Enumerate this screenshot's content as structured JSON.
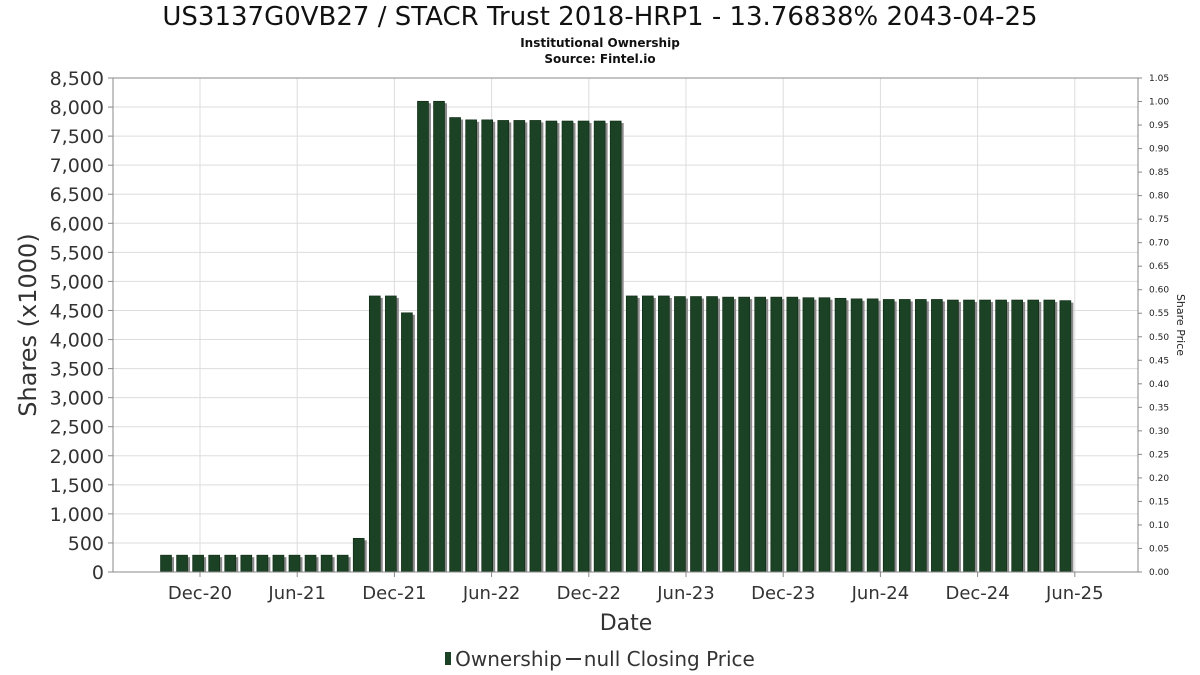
{
  "title": "US3137G0VB27 / STACR Trust 2018-HRP1 - 13.76838% 2043-04-25",
  "subtitle": "Institutional Ownership",
  "source": "Source: Fintel.io",
  "legend": {
    "ownership": "Ownership",
    "price": "null Closing Price"
  },
  "colors": {
    "bar": "#1b4224",
    "bar_shadow": "#8a8a8a",
    "grid": "#dddddd",
    "axis": "#888888",
    "text": "#333333"
  },
  "chart_data": {
    "type": "bar",
    "xlabel": "Date",
    "ylabel": "Shares (x1000)",
    "y2label": "Share Price",
    "ylim": [
      0,
      8500
    ],
    "y2lim": [
      0,
      1.05
    ],
    "grid": true,
    "legend_position": "bottom",
    "x_ticks": [
      "Dec-20",
      "Jun-21",
      "Dec-21",
      "Jun-22",
      "Dec-22",
      "Jun-23",
      "Dec-23",
      "Jun-24",
      "Dec-24",
      "Jun-25"
    ],
    "y_ticks": [
      "0",
      "500",
      "1,000",
      "1,500",
      "2,000",
      "2,500",
      "3,000",
      "3,500",
      "4,000",
      "4,500",
      "5,000",
      "5,500",
      "6,000",
      "6,500",
      "7,000",
      "7,500",
      "8,000",
      "8,500"
    ],
    "y2_ticks": [
      "0.00",
      "0.05",
      "0.10",
      "0.15",
      "0.20",
      "0.25",
      "0.30",
      "0.35",
      "0.40",
      "0.45",
      "0.50",
      "0.55",
      "0.60",
      "0.65",
      "0.70",
      "0.75",
      "0.80",
      "0.85",
      "0.90",
      "0.95",
      "1.00",
      "1.05"
    ],
    "series": [
      {
        "name": "Ownership",
        "values": [
          290,
          290,
          290,
          290,
          290,
          290,
          290,
          290,
          290,
          290,
          290,
          290,
          580,
          4750,
          4750,
          4460,
          8100,
          8100,
          7820,
          7780,
          7780,
          7770,
          7770,
          7770,
          7760,
          7760,
          7760,
          7760,
          7760,
          4750,
          4750,
          4750,
          4740,
          4740,
          4740,
          4730,
          4730,
          4730,
          4730,
          4730,
          4720,
          4720,
          4710,
          4700,
          4700,
          4690,
          4690,
          4690,
          4690,
          4680,
          4680,
          4680,
          4680,
          4680,
          4680,
          4680,
          4670
        ]
      },
      {
        "name": "null Closing Price",
        "values": []
      }
    ]
  }
}
